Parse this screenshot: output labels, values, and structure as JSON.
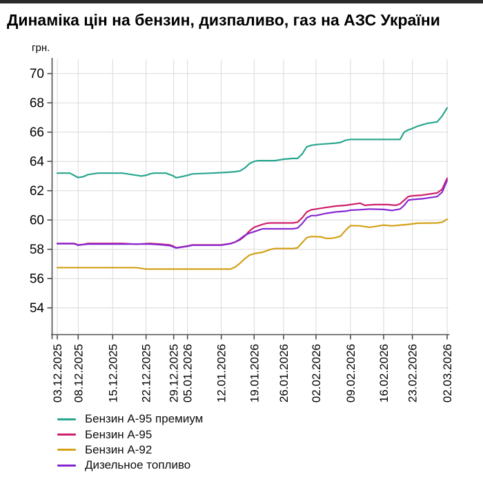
{
  "window": {
    "top_bar_color": "#2a2a2a"
  },
  "title": "Динаміка цін на бензин, дизпаливо, газ на АЗС України",
  "chart_data": {
    "type": "line",
    "title": "Динаміка цін на бензин, дизпаливо, газ на АЗС України",
    "ylabel": "грн.",
    "unit_label": "грн.",
    "ylim": [
      52,
      71
    ],
    "grid": true,
    "grid_color": "#d9d9d9",
    "axis_color": "#4d4d4d",
    "legend_position": "bottom-left",
    "y_ticks": [
      54,
      56,
      58,
      60,
      62,
      64,
      66,
      68,
      70
    ],
    "x_ticks": [
      {
        "label": "03.12.2025",
        "day": 0
      },
      {
        "label": "08.12.2025",
        "day": 5
      },
      {
        "label": "15.12.2025",
        "day": 12
      },
      {
        "label": "22.12.2025",
        "day": 19
      },
      {
        "label": "29.12.2025",
        "day": 26
      },
      {
        "label": "05.01.2026",
        "day": 33
      },
      {
        "label": "12.01.2026",
        "day": 40
      },
      {
        "label": "19.01.2026",
        "day": 47
      },
      {
        "label": "26.01.2026",
        "day": 54
      },
      {
        "label": "02.02.2026",
        "day": 61
      },
      {
        "label": "09.02.2026",
        "day": 68
      },
      {
        "label": "16.02.2026",
        "day": 75
      },
      {
        "label": "23.02.2026",
        "day": 82
      },
      {
        "label": "02.03.2026",
        "day": 89
      }
    ],
    "series": [
      {
        "name": "Бензин А-95 премиум",
        "color": "#27a58c",
        "points": [
          [
            0,
            63.2
          ],
          [
            3,
            63.2
          ],
          [
            4,
            63.05
          ],
          [
            5,
            62.9
          ],
          [
            6,
            62.95
          ],
          [
            7,
            63.1
          ],
          [
            9,
            63.2
          ],
          [
            14,
            63.2
          ],
          [
            16,
            63.1
          ],
          [
            18,
            63.0
          ],
          [
            19,
            63.05
          ],
          [
            20,
            63.15
          ],
          [
            21,
            63.2
          ],
          [
            24,
            63.2
          ],
          [
            25,
            63.1
          ],
          [
            26,
            63.0
          ],
          [
            27,
            62.9
          ],
          [
            28,
            62.9
          ],
          [
            33,
            63.05
          ],
          [
            34,
            63.15
          ],
          [
            38,
            63.2
          ],
          [
            41,
            63.25
          ],
          [
            43,
            63.3
          ],
          [
            44,
            63.35
          ],
          [
            45,
            63.55
          ],
          [
            46,
            63.85
          ],
          [
            47,
            64.0
          ],
          [
            48,
            64.05
          ],
          [
            52,
            64.05
          ],
          [
            54,
            64.15
          ],
          [
            56,
            64.2
          ],
          [
            57,
            64.2
          ],
          [
            58,
            64.5
          ],
          [
            59,
            65.0
          ],
          [
            60,
            65.1
          ],
          [
            61,
            65.15
          ],
          [
            63,
            65.2
          ],
          [
            65,
            65.25
          ],
          [
            66,
            65.3
          ],
          [
            67,
            65.45
          ],
          [
            68,
            65.5
          ],
          [
            79,
            65.5
          ],
          [
            80,
            66.0
          ],
          [
            81,
            66.15
          ],
          [
            82,
            66.25
          ],
          [
            83,
            66.4
          ],
          [
            84,
            66.5
          ],
          [
            85,
            66.6
          ],
          [
            86,
            66.65
          ],
          [
            87,
            66.7
          ],
          [
            88,
            67.1
          ],
          [
            89,
            67.65
          ]
        ]
      },
      {
        "name": "Бензин А-95",
        "color": "#cf1d69",
        "points": [
          [
            0,
            58.4
          ],
          [
            4,
            58.4
          ],
          [
            5,
            58.3
          ],
          [
            6,
            58.33
          ],
          [
            7,
            58.4
          ],
          [
            14,
            58.4
          ],
          [
            17,
            58.35
          ],
          [
            20,
            58.4
          ],
          [
            23,
            58.35
          ],
          [
            25,
            58.3
          ],
          [
            26,
            58.2
          ],
          [
            27,
            58.12
          ],
          [
            28,
            58.12
          ],
          [
            33,
            58.22
          ],
          [
            34,
            58.3
          ],
          [
            40,
            58.3
          ],
          [
            42,
            58.4
          ],
          [
            43,
            58.5
          ],
          [
            44,
            58.65
          ],
          [
            45,
            58.9
          ],
          [
            46,
            59.25
          ],
          [
            47,
            59.5
          ],
          [
            48,
            59.6
          ],
          [
            49,
            59.7
          ],
          [
            50,
            59.78
          ],
          [
            51,
            59.8
          ],
          [
            56,
            59.8
          ],
          [
            57,
            59.85
          ],
          [
            58,
            60.15
          ],
          [
            59,
            60.55
          ],
          [
            60,
            60.7
          ],
          [
            61,
            60.75
          ],
          [
            63,
            60.85
          ],
          [
            65,
            60.95
          ],
          [
            67,
            61.0
          ],
          [
            68,
            61.05
          ],
          [
            69,
            61.1
          ],
          [
            70,
            61.15
          ],
          [
            71,
            61.0
          ],
          [
            73,
            61.05
          ],
          [
            76,
            61.05
          ],
          [
            78,
            61.0
          ],
          [
            79,
            61.1
          ],
          [
            80,
            61.35
          ],
          [
            81,
            61.6
          ],
          [
            82,
            61.65
          ],
          [
            84,
            61.7
          ],
          [
            85,
            61.75
          ],
          [
            86,
            61.8
          ],
          [
            87,
            61.85
          ],
          [
            88,
            62.1
          ],
          [
            89,
            62.85
          ]
        ]
      },
      {
        "name": "Бензин А-92",
        "color": "#d3a118",
        "points": [
          [
            0,
            56.75
          ],
          [
            17,
            56.75
          ],
          [
            19,
            56.65
          ],
          [
            42,
            56.65
          ],
          [
            43,
            56.8
          ],
          [
            44,
            57.05
          ],
          [
            45,
            57.35
          ],
          [
            46,
            57.6
          ],
          [
            47,
            57.7
          ],
          [
            48,
            57.75
          ],
          [
            49,
            57.8
          ],
          [
            50,
            57.9
          ],
          [
            51,
            58.0
          ],
          [
            52,
            58.05
          ],
          [
            56,
            58.05
          ],
          [
            57,
            58.1
          ],
          [
            58,
            58.45
          ],
          [
            59,
            58.8
          ],
          [
            60,
            58.87
          ],
          [
            62,
            58.85
          ],
          [
            63,
            58.75
          ],
          [
            64,
            58.75
          ],
          [
            65,
            58.8
          ],
          [
            66,
            58.9
          ],
          [
            67,
            59.3
          ],
          [
            68,
            59.62
          ],
          [
            70,
            59.6
          ],
          [
            71,
            59.55
          ],
          [
            72,
            59.5
          ],
          [
            73,
            59.55
          ],
          [
            75,
            59.65
          ],
          [
            77,
            59.6
          ],
          [
            79,
            59.65
          ],
          [
            81,
            59.7
          ],
          [
            83,
            59.78
          ],
          [
            87,
            59.8
          ],
          [
            88,
            59.85
          ],
          [
            89,
            60.05
          ]
        ]
      },
      {
        "name": "Дизельное топливо",
        "color": "#8527d2",
        "points": [
          [
            0,
            58.38
          ],
          [
            4,
            58.38
          ],
          [
            5,
            58.28
          ],
          [
            7,
            58.36
          ],
          [
            14,
            58.36
          ],
          [
            20,
            58.36
          ],
          [
            23,
            58.3
          ],
          [
            25,
            58.25
          ],
          [
            26,
            58.15
          ],
          [
            27,
            58.1
          ],
          [
            28,
            58.1
          ],
          [
            33,
            58.2
          ],
          [
            34,
            58.28
          ],
          [
            40,
            58.28
          ],
          [
            42,
            58.38
          ],
          [
            43,
            58.5
          ],
          [
            44,
            58.7
          ],
          [
            45,
            58.95
          ],
          [
            46,
            59.1
          ],
          [
            47,
            59.2
          ],
          [
            48,
            59.3
          ],
          [
            49,
            59.4
          ],
          [
            51,
            59.4
          ],
          [
            56,
            59.4
          ],
          [
            57,
            59.45
          ],
          [
            58,
            59.75
          ],
          [
            59,
            60.15
          ],
          [
            60,
            60.3
          ],
          [
            61,
            60.3
          ],
          [
            63,
            60.45
          ],
          [
            65,
            60.55
          ],
          [
            67,
            60.6
          ],
          [
            68,
            60.67
          ],
          [
            70,
            60.7
          ],
          [
            72,
            60.75
          ],
          [
            75,
            60.72
          ],
          [
            77,
            60.65
          ],
          [
            79,
            60.75
          ],
          [
            80,
            61.0
          ],
          [
            81,
            61.35
          ],
          [
            82,
            61.4
          ],
          [
            84,
            61.45
          ],
          [
            85,
            61.5
          ],
          [
            86,
            61.55
          ],
          [
            87,
            61.6
          ],
          [
            88,
            61.9
          ],
          [
            89,
            62.7
          ]
        ]
      }
    ]
  }
}
